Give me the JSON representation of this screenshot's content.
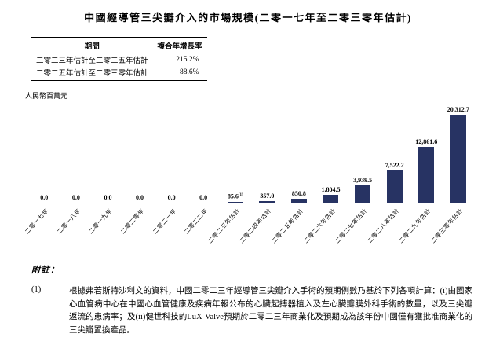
{
  "page": {
    "title": "中國經導管三尖瓣介入的市場規模(二零一七年至二零三零年估計)",
    "unit_label": "人民幣百萬元",
    "notes_heading": "附註：",
    "note_1_marker": "(1)",
    "note_1_text": "根據弗若斯特沙利文的資料，中國二零二三年經導管三尖瓣介入手術的預期例數乃基於下列各項計算：(i)由國家心血管病中心在中國心血管健康及疾病年報公布的心臟起搏器植入及左心臟瓣膜外科手術的數量，以及三尖瓣返流的患病率；及(ii)健世科技的LuX-Valve預期於二零二三年商業化及預期成為該年份中國僅有獲批准商業化的三尖瓣置換產品。"
  },
  "cagr_table": {
    "headers": [
      "期間",
      "複合年增長率"
    ],
    "rows": [
      {
        "period": "二零二三年估計至二零二五年估計",
        "cagr": "215.2%"
      },
      {
        "period": "二零二五年估計至二零三零年估計",
        "cagr": "88.6%"
      }
    ]
  },
  "chart_data": {
    "type": "bar",
    "title": "中國經導管三尖瓣介入的市場規模(二零一七年至二零三零年估計)",
    "ylabel": "人民幣百萬元",
    "xlabel": "",
    "categories": [
      "二零一七年",
      "二零一八年",
      "二零一九年",
      "二零二零年",
      "二零二一年",
      "二零二二年",
      "二零二三年估計",
      "二零二四年估計",
      "二零二五年估計",
      "二零二六年估計",
      "二零二七年估計",
      "二零二八年估計",
      "二零二九年估計",
      "二零三零年估計"
    ],
    "values": [
      0.0,
      0.0,
      0.0,
      0.0,
      0.0,
      0.0,
      85.6,
      357.0,
      850.8,
      1804.5,
      3939.5,
      7522.2,
      12861.6,
      20312.7
    ],
    "value_labels": [
      "0.0",
      "0.0",
      "0.0",
      "0.0",
      "0.0",
      "0.0",
      "85.6",
      "357.0",
      "850.8",
      "1,804.5",
      "3,939.5",
      "7,522.2",
      "12,861.6",
      "20,312.7"
    ],
    "label_superscripts": {
      "6": "(1)"
    },
    "bar_color": "#273363",
    "ylim": [
      0,
      20500
    ],
    "grid": false,
    "legend": false
  }
}
